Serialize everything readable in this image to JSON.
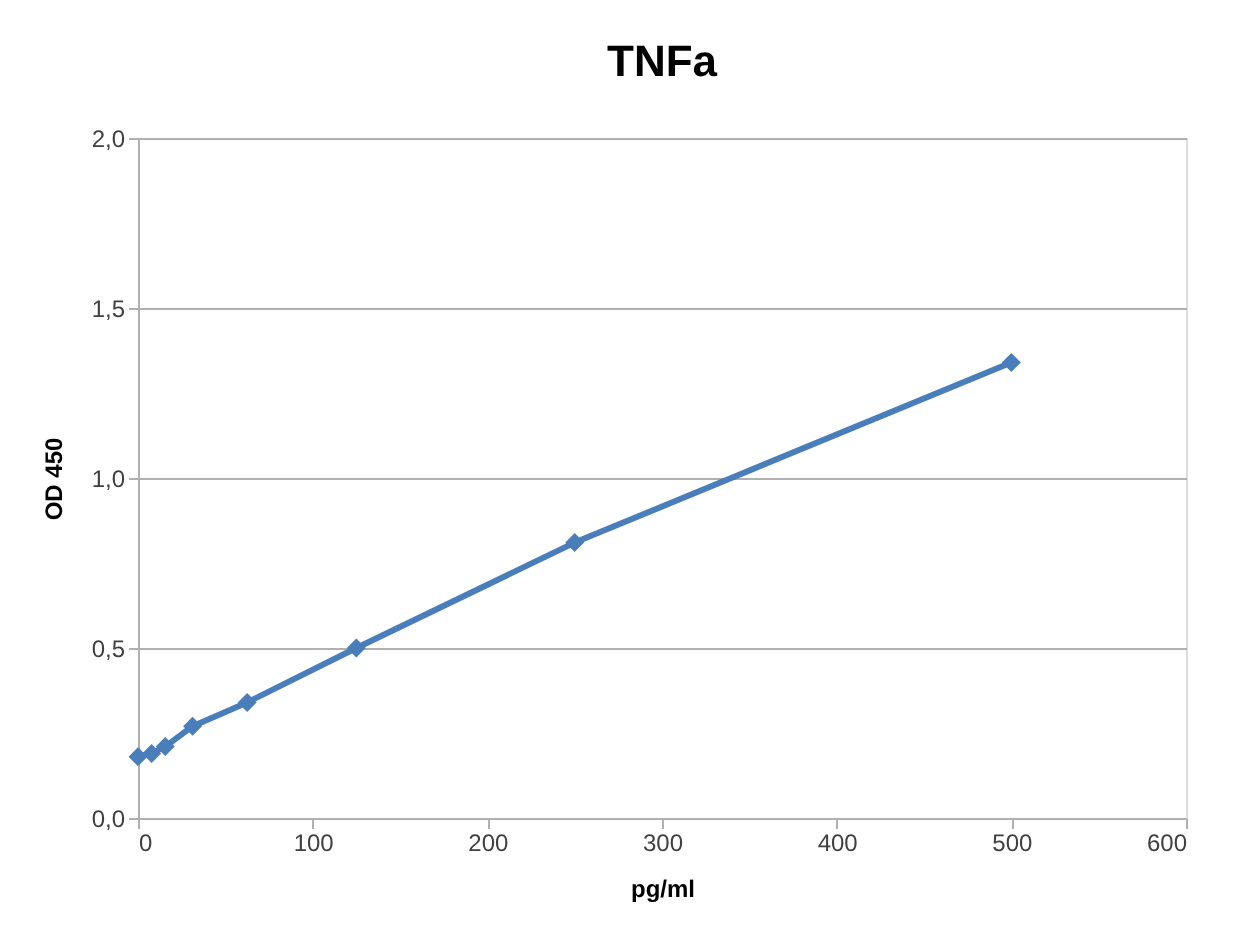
{
  "chart_data": {
    "type": "line",
    "title": "TNFa",
    "xlabel": "pg/ml",
    "ylabel": "OD 450",
    "x": [
      0,
      7.8,
      15.6,
      31.25,
      62.5,
      125,
      250,
      500
    ],
    "series": [
      {
        "color": "#4a7ebb",
        "values": [
          0.18,
          0.19,
          0.21,
          0.27,
          0.34,
          0.5,
          0.81,
          1.34
        ]
      }
    ],
    "xlim": [
      0,
      600
    ],
    "xticks": [
      0,
      100,
      200,
      300,
      400,
      500,
      600
    ],
    "ylim": [
      0,
      2
    ],
    "yticks": [
      {
        "value": 0,
        "label": "0,0"
      },
      {
        "value": 0.5,
        "label": "0,5"
      },
      {
        "value": 1,
        "label": "1,0"
      },
      {
        "value": 1.5,
        "label": "1,5"
      },
      {
        "value": 2,
        "label": "2,0"
      }
    ],
    "grid": "y",
    "marker": "diamond",
    "line_style": "solid"
  }
}
